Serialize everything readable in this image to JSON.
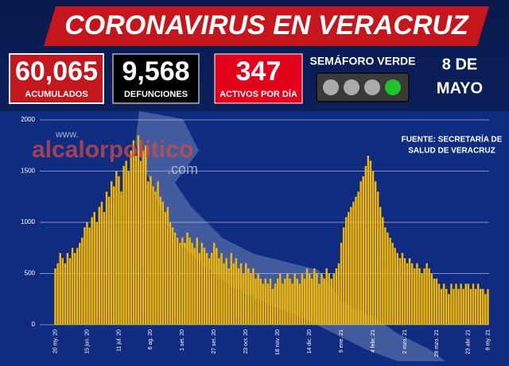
{
  "header": {
    "title": "CORONAVIRUS EN VERACRUZ"
  },
  "stats": [
    {
      "value": "60,065",
      "label": "ACUMULADOS"
    },
    {
      "value": "9,568",
      "label": "DEFUNCIONES"
    },
    {
      "value": "347",
      "label": "ACTIVOS POR DÍA"
    }
  ],
  "semaforo": "SEMÁFORO VERDE",
  "date_lines": [
    "8 DE",
    "MAYO"
  ],
  "source_lines": [
    "FUENTE: SECRETARÍA DE",
    "SALUD DE VERACRUZ"
  ],
  "watermark": {
    "prefix": "www.",
    "name": "alcalorpolitico",
    "suffix": ".com"
  },
  "chart_data": {
    "type": "bar",
    "color": "#f2b705",
    "grid": true,
    "ylim": [
      0,
      2000
    ],
    "yticks": [
      0,
      500,
      1000,
      1500,
      2000
    ],
    "categories": [
      "20 my. 20",
      null,
      null,
      null,
      null,
      null,
      null,
      null,
      null,
      null,
      null,
      null,
      null,
      "15 jun. 20",
      null,
      null,
      null,
      null,
      null,
      null,
      null,
      null,
      null,
      null,
      null,
      null,
      "11 jul. 20",
      null,
      null,
      null,
      null,
      null,
      null,
      null,
      null,
      null,
      null,
      null,
      null,
      "6 ag. 20",
      null,
      null,
      null,
      null,
      null,
      null,
      null,
      null,
      null,
      null,
      null,
      null,
      "1 set. 20",
      null,
      null,
      null,
      null,
      null,
      null,
      null,
      null,
      null,
      null,
      null,
      null,
      "27 set. 20",
      null,
      null,
      null,
      null,
      null,
      null,
      null,
      null,
      null,
      null,
      null,
      null,
      "23 oct. 20",
      null,
      null,
      null,
      null,
      null,
      null,
      null,
      null,
      null,
      null,
      null,
      null,
      "18 nov. 20",
      null,
      null,
      null,
      null,
      null,
      null,
      null,
      null,
      null,
      null,
      null,
      null,
      "14 dic. 20",
      null,
      null,
      null,
      null,
      null,
      null,
      null,
      null,
      null,
      null,
      null,
      null,
      "9 ene. 21",
      null,
      null,
      null,
      null,
      null,
      null,
      null,
      null,
      null,
      null,
      null,
      null,
      "4 febr. 21",
      null,
      null,
      null,
      null,
      null,
      null,
      null,
      null,
      null,
      null,
      null,
      null,
      "2 mzo. 21",
      null,
      null,
      null,
      null,
      null,
      null,
      null,
      null,
      null,
      null,
      null,
      null,
      "28 mzo. 21",
      null,
      null,
      null,
      null,
      null,
      null,
      null,
      null,
      null,
      null,
      null,
      null,
      "23 abr. 21",
      null,
      null,
      null,
      null,
      null,
      null,
      null,
      "8 my. 21"
    ],
    "values": [
      550,
      600,
      700,
      650,
      600,
      700,
      650,
      750,
      700,
      750,
      800,
      850,
      950,
      1000,
      950,
      1050,
      1100,
      1000,
      1150,
      1200,
      1100,
      1300,
      1250,
      1400,
      1350,
      1500,
      1450,
      1300,
      1550,
      1600,
      1500,
      1700,
      1800,
      1650,
      1850,
      1600,
      1700,
      1750,
      1400,
      1450,
      1350,
      1300,
      1400,
      1250,
      1200,
      1100,
      1150,
      1000,
      950,
      900,
      850,
      800,
      850,
      800,
      900,
      850,
      800,
      750,
      850,
      700,
      800,
      750,
      700,
      650,
      700,
      800,
      750,
      650,
      700,
      600,
      650,
      550,
      700,
      600,
      650,
      550,
      600,
      500,
      600,
      550,
      500,
      550,
      450,
      500,
      450,
      400,
      450,
      400,
      450,
      350,
      400,
      450,
      500,
      400,
      450,
      500,
      450,
      400,
      500,
      450,
      400,
      500,
      450,
      550,
      500,
      450,
      550,
      500,
      400,
      500,
      450,
      550,
      500,
      450,
      500,
      550,
      600,
      800,
      950,
      1050,
      1100,
      1150,
      1200,
      1250,
      1300,
      1400,
      1450,
      1550,
      1650,
      1600,
      1500,
      1400,
      1300,
      1150,
      1050,
      950,
      900,
      850,
      800,
      750,
      700,
      650,
      700,
      650,
      600,
      650,
      600,
      550,
      600,
      550,
      500,
      550,
      600,
      550,
      500,
      450,
      450,
      400,
      350,
      400,
      350,
      300,
      400,
      350,
      400,
      350,
      400,
      350,
      400,
      400,
      350,
      400,
      350,
      400,
      350,
      350,
      300,
      347
    ]
  }
}
